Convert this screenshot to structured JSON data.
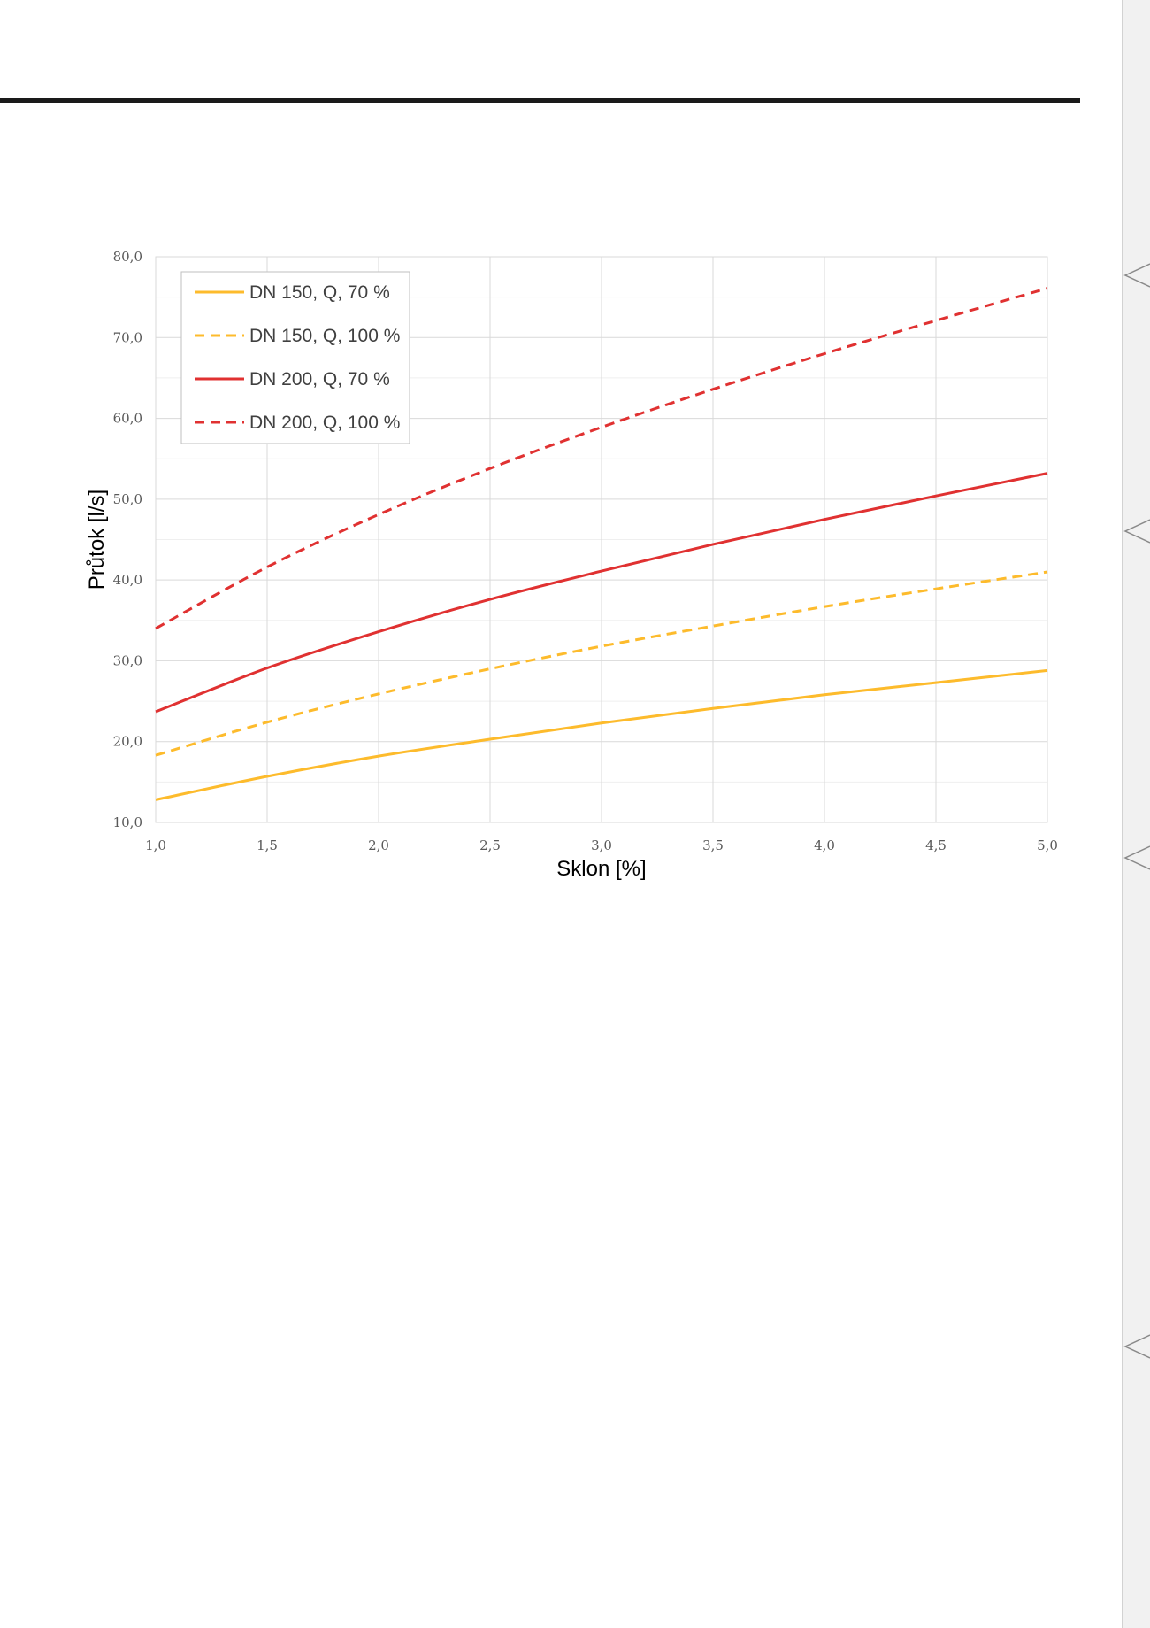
{
  "colors": {
    "yellow": "#fdbb2c",
    "red": "#e03131",
    "grid": "#d9d9d9",
    "rule": "#1a1a1a"
  },
  "chart_data": {
    "type": "line",
    "xlabel": "Sklon [%]",
    "ylabel": "Průtok [l/s]",
    "xlim": [
      1.0,
      5.0
    ],
    "ylim": [
      10.0,
      80.0
    ],
    "x_ticks": [
      "1,0",
      "1,5",
      "2,0",
      "2,5",
      "3,0",
      "3,5",
      "4,0",
      "4,5",
      "5,0"
    ],
    "y_ticks": [
      "10,0",
      "20,0",
      "30,0",
      "40,0",
      "50,0",
      "60,0",
      "70,0",
      "80,0"
    ],
    "grid": true,
    "legend_position": "top-left",
    "x": [
      1.0,
      1.5,
      2.0,
      2.5,
      3.0,
      3.5,
      4.0,
      4.5,
      5.0
    ],
    "series": [
      {
        "name": "DN 150, Q, 70 %",
        "color": "#fdbb2c",
        "dash": "solid",
        "values": [
          12.8,
          15.7,
          18.2,
          20.3,
          22.3,
          24.1,
          25.8,
          27.3,
          28.8
        ]
      },
      {
        "name": "DN 150, Q, 100 %",
        "color": "#fdbb2c",
        "dash": "dashed",
        "values": [
          18.3,
          22.4,
          25.9,
          29.0,
          31.8,
          34.3,
          36.7,
          38.9,
          41.0
        ]
      },
      {
        "name": "DN 200, Q, 70 %",
        "color": "#e03131",
        "dash": "solid",
        "values": [
          23.7,
          29.1,
          33.6,
          37.6,
          41.1,
          44.4,
          47.5,
          50.4,
          53.2
        ]
      },
      {
        "name": "DN 200, Q, 100 %",
        "color": "#e03131",
        "dash": "dashed",
        "values": [
          34.0,
          41.6,
          48.1,
          53.8,
          58.9,
          63.6,
          68.0,
          72.1,
          76.1
        ]
      }
    ]
  }
}
